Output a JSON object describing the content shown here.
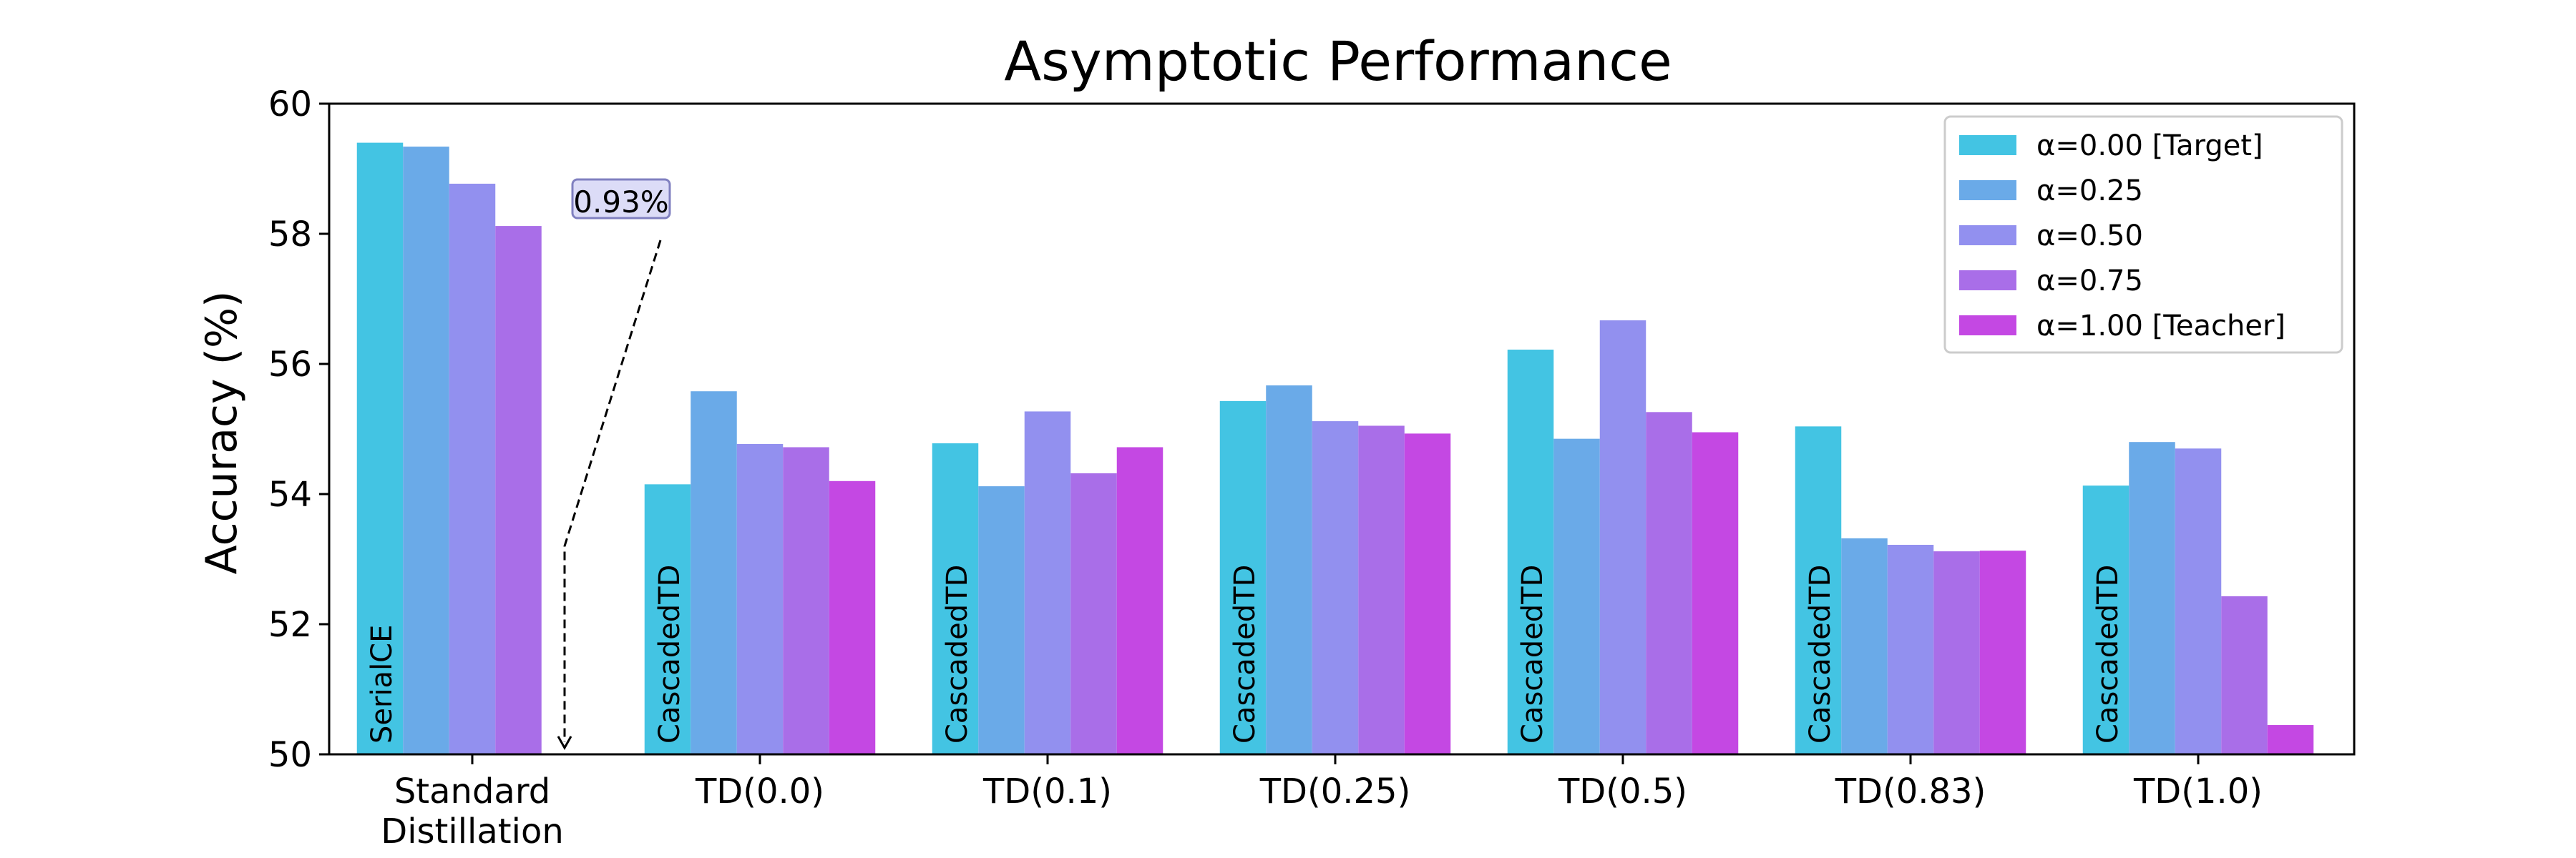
{
  "chart_data": {
    "type": "bar",
    "title": "Asymptotic Performance",
    "ylabel": "Accuracy (%)",
    "xlabel": "",
    "ylim": [
      50,
      60
    ],
    "yticks": [
      50,
      52,
      54,
      56,
      58,
      60
    ],
    "grid": false,
    "legend_position": "top-right",
    "categories": [
      [
        "Standard",
        "Distillation"
      ],
      [
        "TD(0.0)"
      ],
      [
        "TD(0.1)"
      ],
      [
        "TD(0.25)"
      ],
      [
        "TD(0.5)"
      ],
      [
        "TD(0.83)"
      ],
      [
        "TD(1.0)"
      ]
    ],
    "series": [
      {
        "name": "α=0.00 [Target]",
        "color": "#43c4e3",
        "values": [
          59.4,
          54.15,
          54.78,
          55.43,
          56.22,
          55.04,
          54.13
        ]
      },
      {
        "name": "α=0.25",
        "color": "#6aaae8",
        "values": [
          59.34,
          55.58,
          54.12,
          55.67,
          54.85,
          53.32,
          54.8
        ]
      },
      {
        "name": "α=0.50",
        "color": "#9290ef",
        "values": [
          58.77,
          54.77,
          55.27,
          55.12,
          56.67,
          53.22,
          54.7
        ]
      },
      {
        "name": "α=0.75",
        "color": "#a96ee8",
        "values": [
          58.12,
          54.72,
          54.32,
          55.05,
          55.26,
          53.12,
          52.43
        ]
      },
      {
        "name": "α=1.00 [Teacher]",
        "color": "#c448e3",
        "values": [
          null,
          54.2,
          54.72,
          54.93,
          54.95,
          53.13,
          50.45
        ]
      }
    ],
    "bar_labels": [
      "SerialCE",
      "CascadedTD",
      "CascadedTD",
      "CascadedTD",
      "CascadedTD",
      "CascadedTD",
      "CascadedTD"
    ],
    "annotation": {
      "text": "0.93%",
      "category_index": 0,
      "target_value": 50.1
    }
  }
}
